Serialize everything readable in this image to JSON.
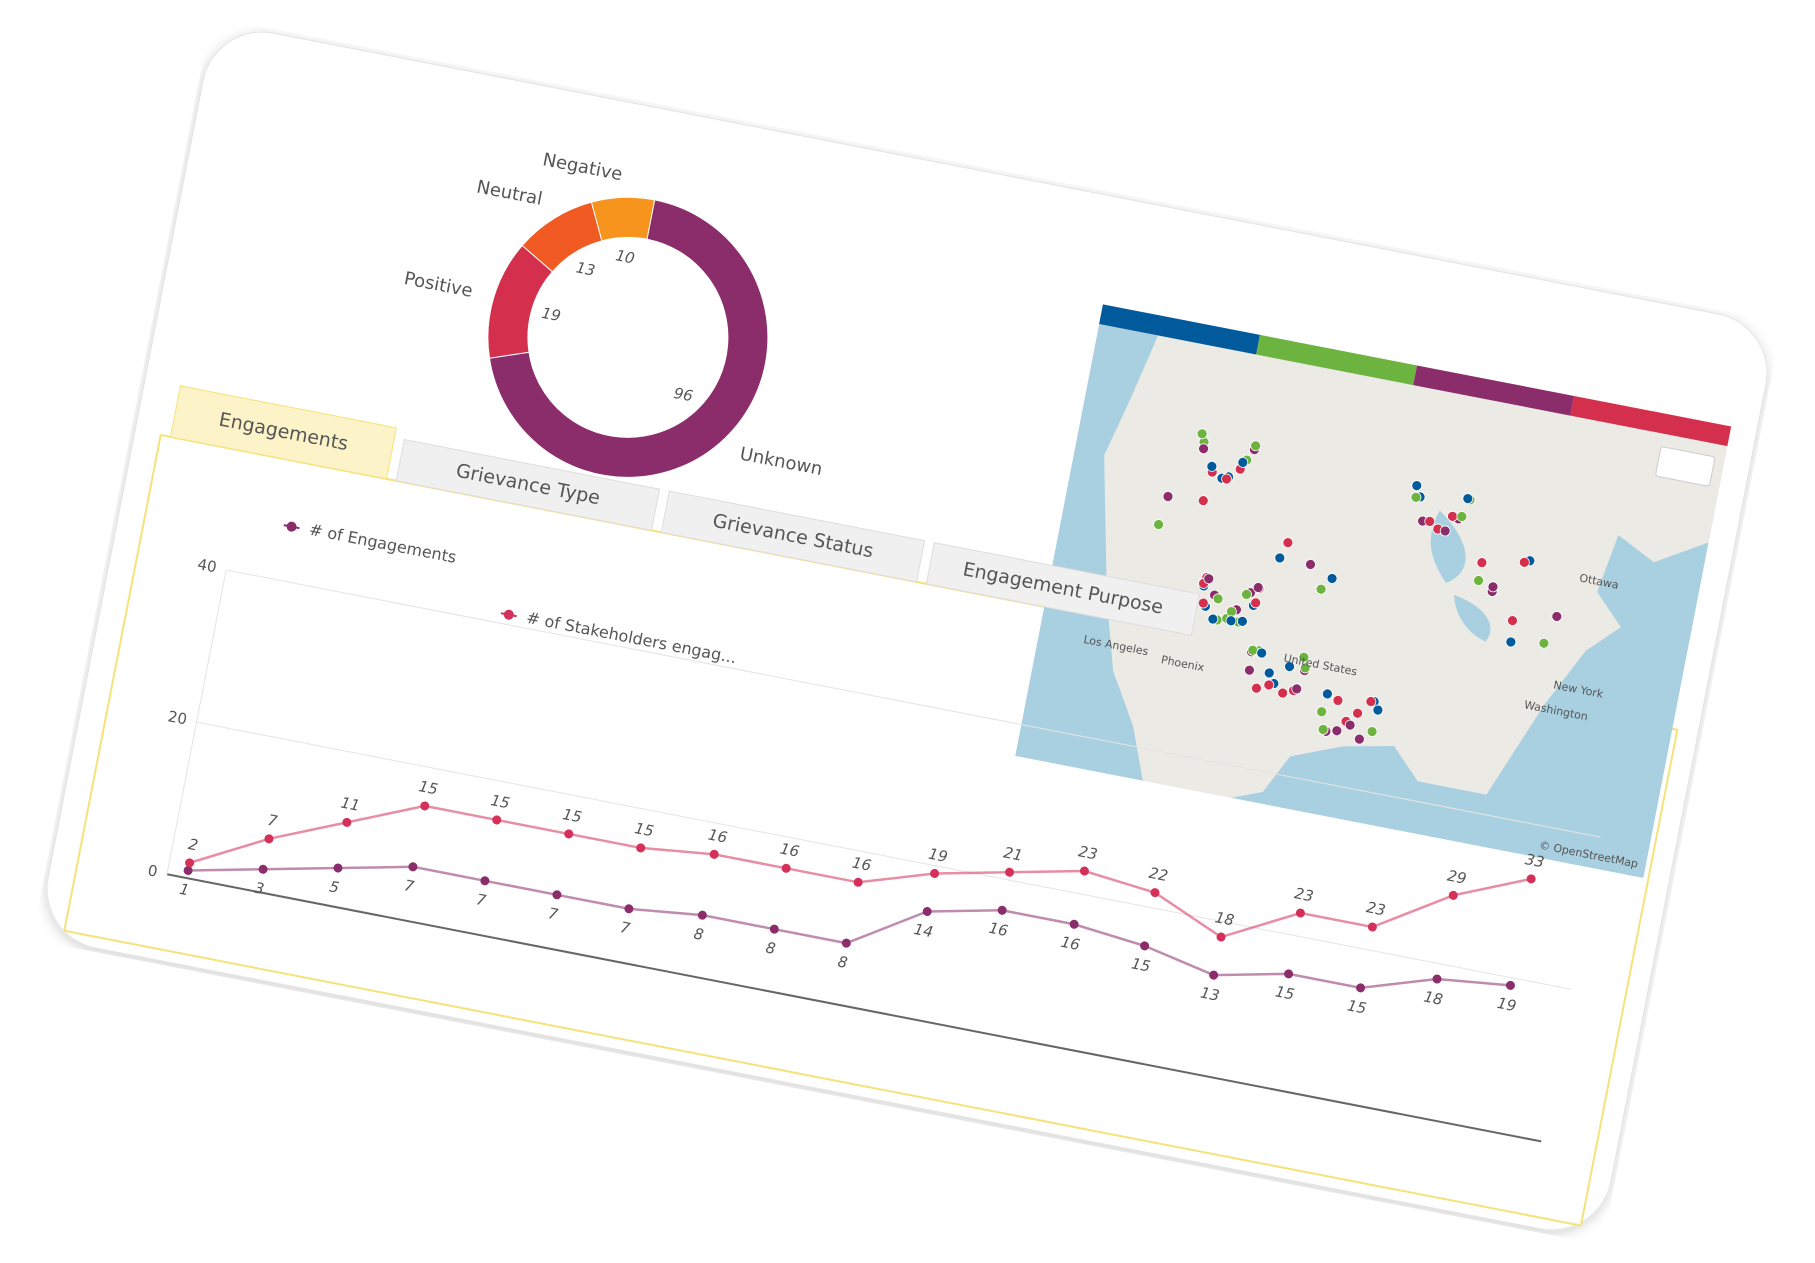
{
  "chart_data": [
    {
      "type": "pie",
      "categories": [
        "Unknown",
        "Positive",
        "Neutral",
        "Negative"
      ],
      "values": [
        96,
        19,
        13,
        10
      ],
      "colors": [
        "#8b2d6b",
        "#d4304e",
        "#f15a22",
        "#f7941d"
      ]
    },
    {
      "type": "line",
      "series": [
        {
          "name": "# of Engagements",
          "color": "#8b2d6b",
          "values": [
            1,
            3,
            5,
            7,
            7,
            7,
            7,
            8,
            8,
            8,
            14,
            16,
            16,
            15,
            13,
            15,
            15,
            18,
            19
          ]
        },
        {
          "name": "# of Stakeholders engag...",
          "color": "#d4305a",
          "values": [
            2,
            7,
            11,
            15,
            15,
            15,
            15,
            16,
            16,
            16,
            19,
            21,
            23,
            22,
            18,
            23,
            23,
            29,
            33
          ]
        }
      ],
      "ylim": [
        0,
        40
      ],
      "yticks": [
        0,
        20,
        40
      ],
      "grid": true
    }
  ],
  "tabs": [
    "Engagements",
    "Grievance Type",
    "Grievance Status",
    "Engagement Purpose"
  ],
  "active_tab": 0,
  "map": {
    "legend_colors": [
      "#005a9c",
      "#6db33f",
      "#8b2d6b",
      "#d4304e"
    ],
    "labels": [
      "Los Angeles",
      "Phoenix",
      "United States",
      "Ottawa",
      "New York",
      "Washington"
    ],
    "attribution": "© OpenStreetMap"
  }
}
